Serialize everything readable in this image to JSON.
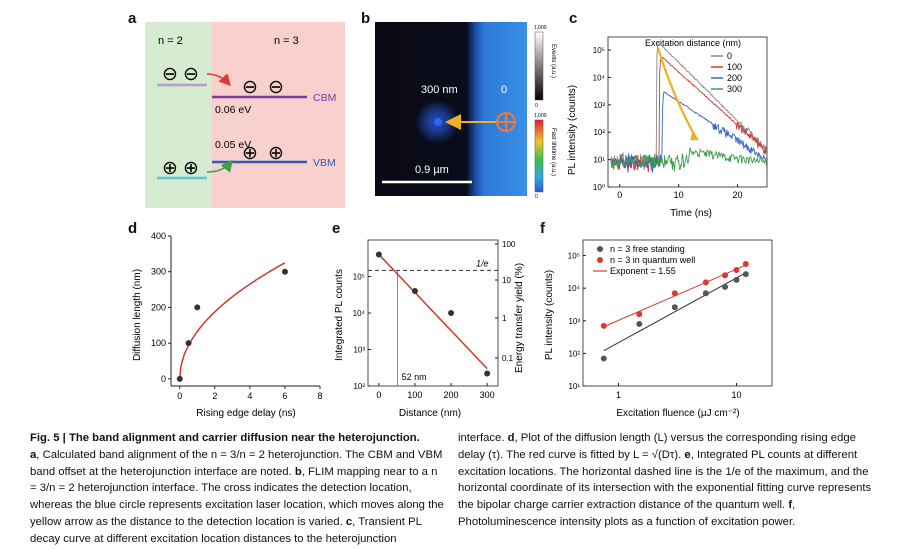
{
  "panels": {
    "a": "a",
    "b": "b",
    "c": "c",
    "d": "d",
    "e": "e",
    "f": "f"
  },
  "a": {
    "left_label": "n = 2",
    "right_label": "n = 3",
    "electron": "⊖",
    "hole": "⊕",
    "cbm_label": "CBM",
    "vbm_label": "VBM",
    "cbm_offset": "0.06 eV",
    "vbm_offset": "0.05 eV",
    "colors": {
      "left_bg": "#d6ebcf",
      "right_bg": "#f8d0cd",
      "cbm": "#7b3aa0",
      "vbm": "#2e5db6",
      "n2_cb": "#b89ad1",
      "n2_vb": "#5bc3e3"
    }
  },
  "b": {
    "label_300": "300 nm",
    "label_0": "0",
    "scale_label": "0.9 µm",
    "cb1_top": "1,000",
    "cb1_bottom": "0",
    "cb1_label": "Events (a.u.)",
    "cb2_top": "1,000",
    "cb2_bottom": "0",
    "cb2_label": "Fast lifetime (a.u.)"
  },
  "chart_data": [
    {
      "panel": "c",
      "type": "line",
      "title": "",
      "xlabel": "Time (ns)",
      "ylabel": "PL intensity (counts)",
      "xlim": [
        -2,
        25
      ],
      "ylim": [
        1,
        300000
      ],
      "yscale": "log",
      "xticks": [
        "0",
        "10",
        "20"
      ],
      "yticks": [
        "10⁰",
        "10¹",
        "10²",
        "10³",
        "10⁴",
        "10⁵"
      ],
      "legend_title": "Excitation distance (nm)",
      "series": [
        {
          "name": "0",
          "color": "#888888",
          "peak_time": 6.5,
          "peak": 200000,
          "end_value": 22
        },
        {
          "name": "100",
          "color": "#d03a36",
          "peak_time": 7,
          "peak": 60000,
          "end_value": 20
        },
        {
          "name": "200",
          "color": "#3a62c8",
          "peak_time": 7.5,
          "peak": 3000,
          "end_value": 10
        },
        {
          "name": "300",
          "color": "#3aa04a",
          "peak_time": 12,
          "peak": 20,
          "end_value": 8
        }
      ]
    },
    {
      "panel": "d",
      "type": "scatter",
      "xlabel": "Rising edge delay (ns)",
      "ylabel": "Diffusion length (nm)",
      "xlim": [
        -0.5,
        8
      ],
      "ylim": [
        -20,
        400
      ],
      "xticks": [
        "0",
        "2",
        "4",
        "6",
        "8"
      ],
      "yticks": [
        "0",
        "100",
        "200",
        "300",
        "400"
      ],
      "points": [
        {
          "x": 0,
          "y": 0
        },
        {
          "x": 0.5,
          "y": 100
        },
        {
          "x": 1,
          "y": 200
        },
        {
          "x": 6,
          "y": 300
        }
      ],
      "fit": {
        "name": "L = sqrt(D tau)",
        "D_nm2_per_ns": 17600
      }
    },
    {
      "panel": "e",
      "type": "scatter",
      "xlabel": "Distance (nm)",
      "ylabel": "Integrated PL counts",
      "y2label": "Energy transfer yield (%)",
      "xlim": [
        -30,
        330
      ],
      "ylim": [
        100,
        1000000
      ],
      "xticks": [
        "0",
        "100",
        "200",
        "300"
      ],
      "yticks": [
        "10²",
        "10³",
        "10⁴",
        "10⁵"
      ],
      "y2ticks": [
        "100",
        "10",
        "1",
        "0.1"
      ],
      "points": [
        {
          "x": 0,
          "y": 400000
        },
        {
          "x": 100,
          "y": 40000
        },
        {
          "x": 200,
          "y": 10000
        },
        {
          "x": 300,
          "y": 220
        }
      ],
      "fit": {
        "type": "exponential",
        "y0": 400000,
        "y300": 300
      },
      "hline_label": "1/e",
      "vline_label": "52 nm",
      "vline_x": 52
    },
    {
      "panel": "f",
      "type": "scatter",
      "xlabel": "Excitation fluence (µJ cm⁻²)",
      "ylabel": "PL intensity (counts)",
      "xlim": [
        0.5,
        20
      ],
      "ylim": [
        10,
        300000
      ],
      "xticks": [
        "1",
        "10"
      ],
      "yticks": [
        "10¹",
        "10²",
        "10³",
        "10⁴",
        "10⁵"
      ],
      "series": [
        {
          "name": "n = 3 free standing",
          "color": "#555555",
          "x": [
            0.75,
            1.5,
            3,
            5.5,
            8,
            10,
            12
          ],
          "y": [
            70,
            800,
            2600,
            7000,
            11000,
            18000,
            27000
          ]
        },
        {
          "name": "n = 3 in quantum well",
          "color": "#d63b33",
          "x": [
            0.75,
            1.5,
            3,
            5.5,
            8,
            10,
            12
          ],
          "y": [
            700,
            1600,
            7000,
            15000,
            25000,
            36000,
            55000
          ]
        }
      ],
      "fit_label": "Exponent = 1.55"
    }
  ],
  "caption": {
    "fig_label": "Fig. 5 | ",
    "fig_title": "The band alignment and carrier diffusion near the heterojunction.",
    "a_label": "a",
    "a_text": ", Calculated band alignment of the n = 3/n = 2 heterojunction. The CBM and VBM band offset at the heterojunction interface are noted.",
    "b_label": "b",
    "b_text": ", FLIM mapping near to a n = 3/n = 2 heterojunction interface. The cross indicates the detection location, whereas the blue circle represents excitation laser location, which moves along the yellow arrow as the distance to the detection location is varied.",
    "c_label": "c",
    "c_text": ", Transient PL decay curve at different excitation location distances to the heterojunction",
    "right_intro": "interface.",
    "d_label": "d",
    "d_text": ", Plot of the diffusion length (L) versus the corresponding rising edge delay (τ). The red curve is fitted by L = √(Dτ).",
    "e_label": "e",
    "e_text": ", Integrated PL counts at different excitation locations. The horizontal dashed line is the 1/e of the maximum, and the horizontal coordinate of its intersection with the exponential fitting curve represents the bipolar charge carrier extraction distance of the quantum well.",
    "f_label": "f",
    "f_text": ", Photoluminescence intensity plots as a function of excitation power."
  }
}
